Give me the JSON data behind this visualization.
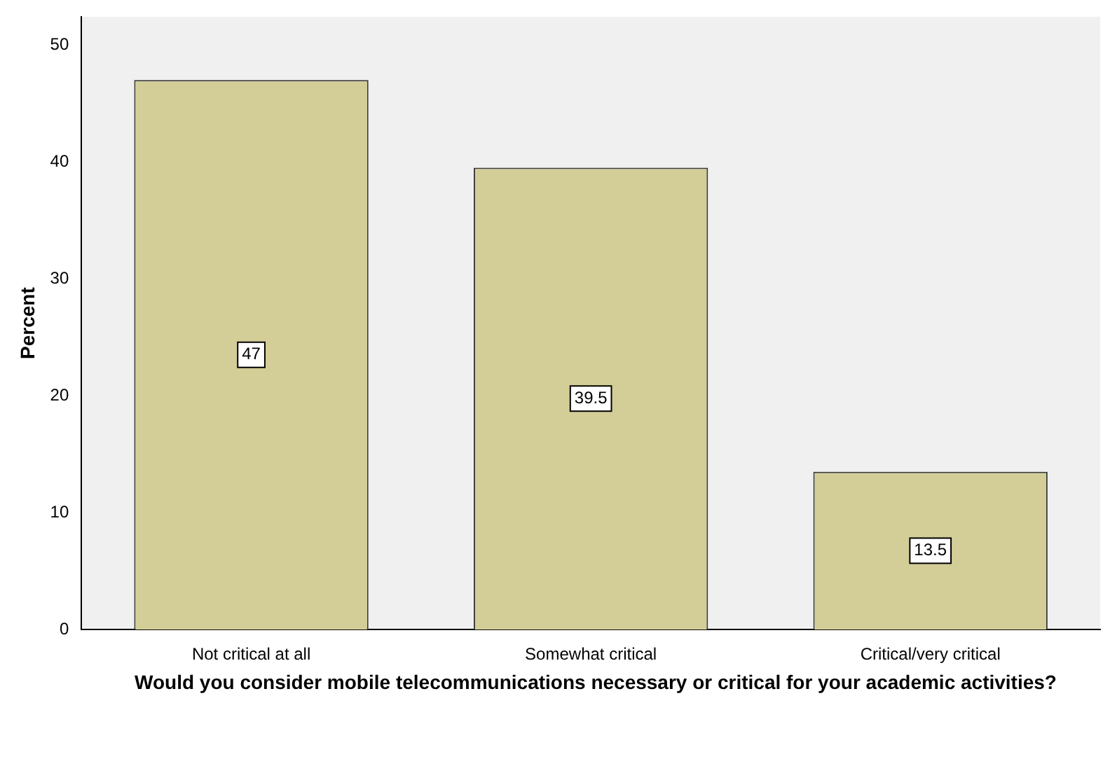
{
  "chart_data": {
    "type": "bar",
    "ylabel": "Percent",
    "xlabel": "Would you consider mobile telecommunications necessary or critical for your academic activities?",
    "categories": [
      "Not critical at all",
      "Somewhat critical",
      "Critical/very critical"
    ],
    "values": [
      47,
      39.5,
      13.5
    ],
    "color": "#d3ce97",
    "ylim": [
      0,
      52.4
    ],
    "yticks": [
      0,
      10,
      20,
      30,
      40,
      50
    ],
    "grid": false,
    "data_labels": true
  }
}
